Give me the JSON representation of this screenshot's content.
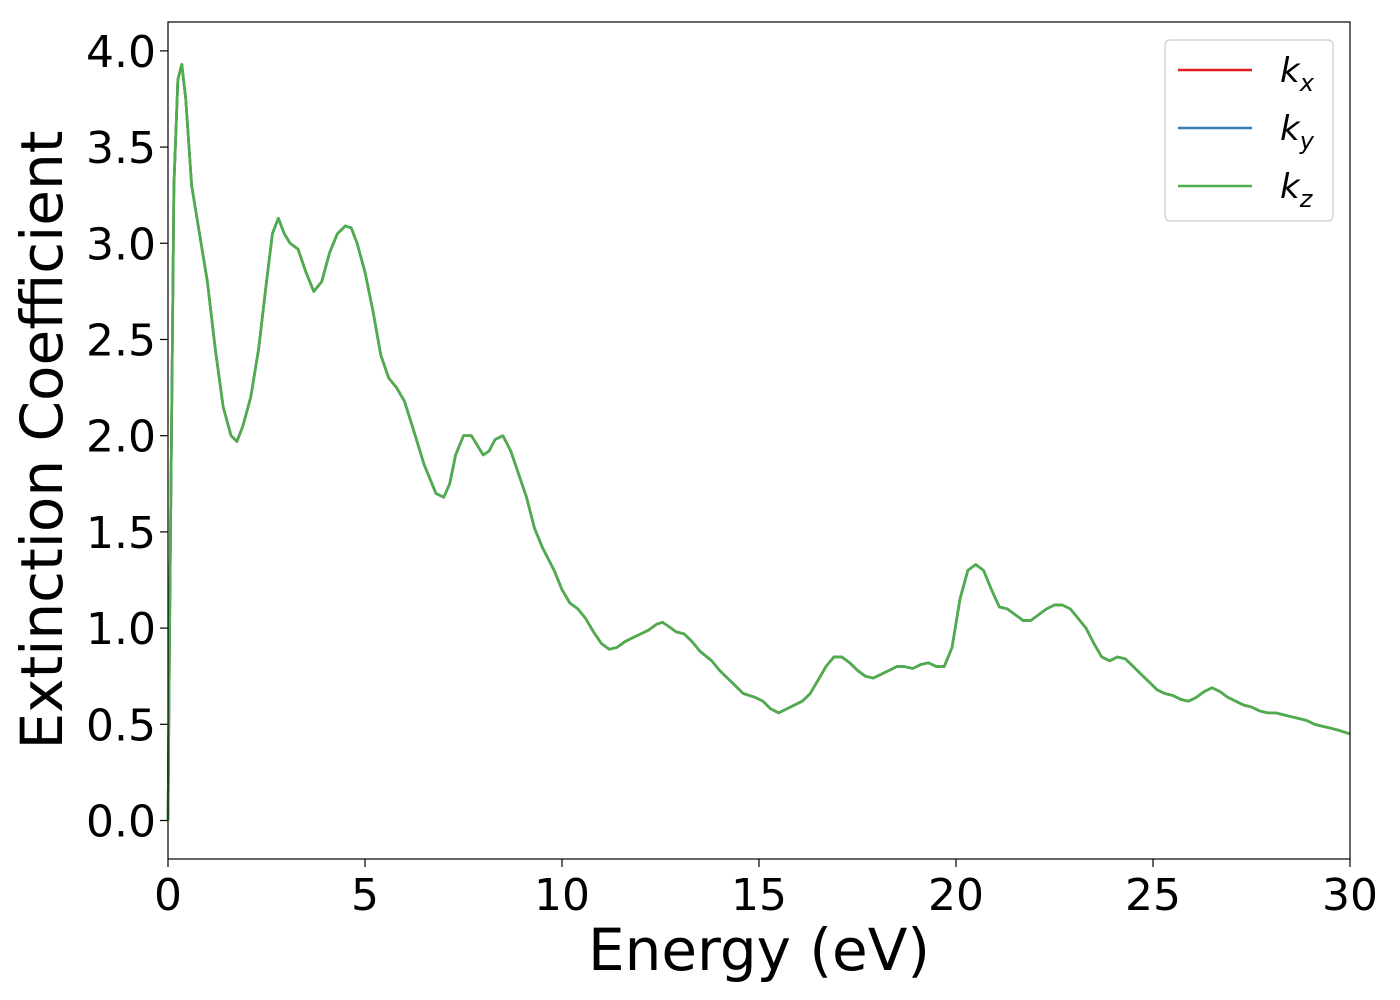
{
  "chart_data": {
    "type": "line",
    "title": "",
    "xlabel": "Energy (eV)",
    "ylabel": "Extinction Coefficient",
    "xlim": [
      0,
      30
    ],
    "ylim": [
      -0.2,
      4.15
    ],
    "x_ticks": [
      0,
      5,
      10,
      15,
      20,
      25,
      30
    ],
    "x_tick_labels": [
      "0",
      "5",
      "10",
      "15",
      "20",
      "25",
      "30"
    ],
    "y_ticks": [
      0.0,
      0.5,
      1.0,
      1.5,
      2.0,
      2.5,
      3.0,
      3.5,
      4.0
    ],
    "y_tick_labels": [
      "0.0",
      "0.5",
      "1.0",
      "1.5",
      "2.0",
      "2.5",
      "3.0",
      "3.5",
      "4.0"
    ],
    "grid": false,
    "legend_position": "top-right",
    "x": [
      0.0,
      0.05,
      0.15,
      0.25,
      0.35,
      0.45,
      0.6,
      0.8,
      1.0,
      1.2,
      1.4,
      1.6,
      1.75,
      1.9,
      2.1,
      2.3,
      2.5,
      2.65,
      2.8,
      2.95,
      3.1,
      3.3,
      3.5,
      3.7,
      3.9,
      4.1,
      4.3,
      4.5,
      4.65,
      4.8,
      5.0,
      5.2,
      5.4,
      5.6,
      5.8,
      6.0,
      6.2,
      6.5,
      6.8,
      7.0,
      7.15,
      7.3,
      7.5,
      7.7,
      7.85,
      8.0,
      8.15,
      8.3,
      8.5,
      8.7,
      8.9,
      9.1,
      9.3,
      9.5,
      9.8,
      10.0,
      10.2,
      10.4,
      10.6,
      10.8,
      11.0,
      11.2,
      11.4,
      11.6,
      11.8,
      12.0,
      12.2,
      12.4,
      12.55,
      12.7,
      12.9,
      13.1,
      13.3,
      13.5,
      13.8,
      14.0,
      14.3,
      14.6,
      14.9,
      15.1,
      15.3,
      15.5,
      15.7,
      15.9,
      16.1,
      16.3,
      16.5,
      16.7,
      16.9,
      17.1,
      17.3,
      17.5,
      17.7,
      17.9,
      18.1,
      18.3,
      18.5,
      18.7,
      18.9,
      19.1,
      19.3,
      19.5,
      19.7,
      19.9,
      20.1,
      20.3,
      20.5,
      20.7,
      20.9,
      21.1,
      21.3,
      21.5,
      21.7,
      21.9,
      22.1,
      22.3,
      22.5,
      22.7,
      22.9,
      23.1,
      23.3,
      23.5,
      23.7,
      23.9,
      24.1,
      24.3,
      24.5,
      24.7,
      24.9,
      25.1,
      25.3,
      25.5,
      25.7,
      25.9,
      26.1,
      26.3,
      26.5,
      26.7,
      26.9,
      27.1,
      27.3,
      27.5,
      27.7,
      27.9,
      28.1,
      28.3,
      28.5,
      28.7,
      28.9,
      29.1,
      29.3,
      29.5,
      29.7,
      30.0
    ],
    "series": [
      {
        "name": "k_x",
        "label_main": "k",
        "label_sub": "x",
        "color": "#e41a1c",
        "values": [
          0.0,
          1.2,
          3.3,
          3.85,
          3.93,
          3.75,
          3.3,
          3.05,
          2.8,
          2.45,
          2.15,
          2.0,
          1.97,
          2.05,
          2.2,
          2.45,
          2.8,
          3.05,
          3.13,
          3.05,
          3.0,
          2.97,
          2.85,
          2.75,
          2.8,
          2.95,
          3.05,
          3.09,
          3.08,
          3.0,
          2.85,
          2.65,
          2.42,
          2.3,
          2.25,
          2.18,
          2.05,
          1.85,
          1.7,
          1.68,
          1.75,
          1.9,
          2.0,
          2.0,
          1.95,
          1.9,
          1.92,
          1.98,
          2.0,
          1.92,
          1.8,
          1.68,
          1.52,
          1.42,
          1.3,
          1.2,
          1.13,
          1.1,
          1.05,
          0.98,
          0.92,
          0.89,
          0.9,
          0.93,
          0.95,
          0.97,
          0.99,
          1.02,
          1.03,
          1.01,
          0.98,
          0.97,
          0.93,
          0.88,
          0.83,
          0.78,
          0.72,
          0.66,
          0.64,
          0.62,
          0.58,
          0.56,
          0.58,
          0.6,
          0.62,
          0.66,
          0.73,
          0.8,
          0.85,
          0.85,
          0.82,
          0.78,
          0.75,
          0.74,
          0.76,
          0.78,
          0.8,
          0.8,
          0.79,
          0.81,
          0.82,
          0.8,
          0.8,
          0.9,
          1.15,
          1.3,
          1.33,
          1.3,
          1.2,
          1.11,
          1.1,
          1.07,
          1.04,
          1.04,
          1.07,
          1.1,
          1.12,
          1.12,
          1.1,
          1.05,
          1.0,
          0.92,
          0.85,
          0.83,
          0.85,
          0.84,
          0.8,
          0.76,
          0.72,
          0.68,
          0.66,
          0.65,
          0.63,
          0.62,
          0.64,
          0.67,
          0.69,
          0.67,
          0.64,
          0.62,
          0.6,
          0.59,
          0.57,
          0.56,
          0.56,
          0.55,
          0.54,
          0.53,
          0.52,
          0.5,
          0.49,
          0.48,
          0.47,
          0.45
        ]
      },
      {
        "name": "k_y",
        "label_main": "k",
        "label_sub": "y",
        "color": "#377eb8",
        "values": [
          0.0,
          1.2,
          3.3,
          3.85,
          3.93,
          3.75,
          3.3,
          3.05,
          2.8,
          2.45,
          2.15,
          2.0,
          1.97,
          2.05,
          2.2,
          2.45,
          2.8,
          3.05,
          3.13,
          3.05,
          3.0,
          2.97,
          2.85,
          2.75,
          2.8,
          2.95,
          3.05,
          3.09,
          3.08,
          3.0,
          2.85,
          2.65,
          2.42,
          2.3,
          2.25,
          2.18,
          2.05,
          1.85,
          1.7,
          1.68,
          1.75,
          1.9,
          2.0,
          2.0,
          1.95,
          1.9,
          1.92,
          1.98,
          2.0,
          1.92,
          1.8,
          1.68,
          1.52,
          1.42,
          1.3,
          1.2,
          1.13,
          1.1,
          1.05,
          0.98,
          0.92,
          0.89,
          0.9,
          0.93,
          0.95,
          0.97,
          0.99,
          1.02,
          1.03,
          1.01,
          0.98,
          0.97,
          0.93,
          0.88,
          0.83,
          0.78,
          0.72,
          0.66,
          0.64,
          0.62,
          0.58,
          0.56,
          0.58,
          0.6,
          0.62,
          0.66,
          0.73,
          0.8,
          0.85,
          0.85,
          0.82,
          0.78,
          0.75,
          0.74,
          0.76,
          0.78,
          0.8,
          0.8,
          0.79,
          0.81,
          0.82,
          0.8,
          0.8,
          0.9,
          1.15,
          1.3,
          1.33,
          1.3,
          1.2,
          1.11,
          1.1,
          1.07,
          1.04,
          1.04,
          1.07,
          1.1,
          1.12,
          1.12,
          1.1,
          1.05,
          1.0,
          0.92,
          0.85,
          0.83,
          0.85,
          0.84,
          0.8,
          0.76,
          0.72,
          0.68,
          0.66,
          0.65,
          0.63,
          0.62,
          0.64,
          0.67,
          0.69,
          0.67,
          0.64,
          0.62,
          0.6,
          0.59,
          0.57,
          0.56,
          0.56,
          0.55,
          0.54,
          0.53,
          0.52,
          0.5,
          0.49,
          0.48,
          0.47,
          0.45
        ]
      },
      {
        "name": "k_z",
        "label_main": "k",
        "label_sub": "z",
        "color": "#4daf4a",
        "values": [
          0.0,
          1.2,
          3.3,
          3.85,
          3.93,
          3.75,
          3.3,
          3.05,
          2.8,
          2.45,
          2.15,
          2.0,
          1.97,
          2.05,
          2.2,
          2.45,
          2.8,
          3.05,
          3.13,
          3.05,
          3.0,
          2.97,
          2.85,
          2.75,
          2.8,
          2.95,
          3.05,
          3.09,
          3.08,
          3.0,
          2.85,
          2.65,
          2.42,
          2.3,
          2.25,
          2.18,
          2.05,
          1.85,
          1.7,
          1.68,
          1.75,
          1.9,
          2.0,
          2.0,
          1.95,
          1.9,
          1.92,
          1.98,
          2.0,
          1.92,
          1.8,
          1.68,
          1.52,
          1.42,
          1.3,
          1.2,
          1.13,
          1.1,
          1.05,
          0.98,
          0.92,
          0.89,
          0.9,
          0.93,
          0.95,
          0.97,
          0.99,
          1.02,
          1.03,
          1.01,
          0.98,
          0.97,
          0.93,
          0.88,
          0.83,
          0.78,
          0.72,
          0.66,
          0.64,
          0.62,
          0.58,
          0.56,
          0.58,
          0.6,
          0.62,
          0.66,
          0.73,
          0.8,
          0.85,
          0.85,
          0.82,
          0.78,
          0.75,
          0.74,
          0.76,
          0.78,
          0.8,
          0.8,
          0.79,
          0.81,
          0.82,
          0.8,
          0.8,
          0.9,
          1.15,
          1.3,
          1.33,
          1.3,
          1.2,
          1.11,
          1.1,
          1.07,
          1.04,
          1.04,
          1.07,
          1.1,
          1.12,
          1.12,
          1.1,
          1.05,
          1.0,
          0.92,
          0.85,
          0.83,
          0.85,
          0.84,
          0.8,
          0.76,
          0.72,
          0.68,
          0.66,
          0.65,
          0.63,
          0.62,
          0.64,
          0.67,
          0.69,
          0.67,
          0.64,
          0.62,
          0.6,
          0.59,
          0.57,
          0.56,
          0.56,
          0.55,
          0.54,
          0.53,
          0.52,
          0.5,
          0.49,
          0.48,
          0.47,
          0.45
        ]
      }
    ]
  }
}
